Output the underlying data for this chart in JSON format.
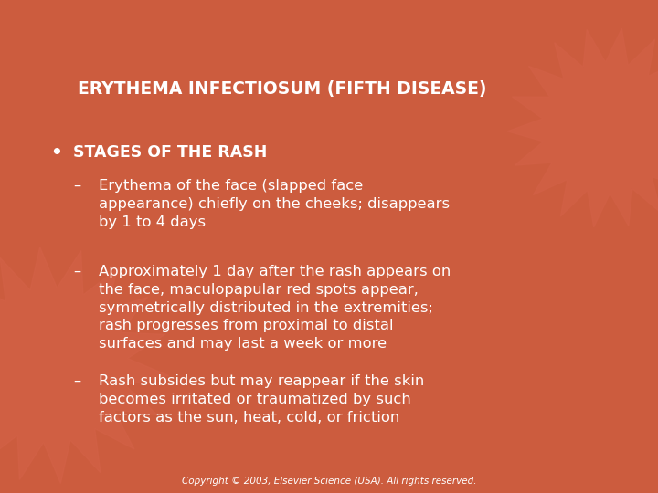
{
  "background_color": "#CC5C3E",
  "title": "ERYTHEMA INFECTIOSUM (FIFTH DISEASE)",
  "title_color": "#FFFFFF",
  "title_fontsize": 13.5,
  "title_bold": true,
  "text_color": "#FFFFFF",
  "body_fontsize": 11.8,
  "bullet_label": "STAGES OF THE RASH",
  "bullet_label_fontsize": 12.5,
  "bullet_label_bold": true,
  "items": [
    "Erythema of the face (slapped face\nappearance) chiefly on the cheeks; disappears\nby 1 to 4 days",
    "Approximately 1 day after the rash appears on\nthe face, maculopapular red spots appear,\nsymmetrically distributed in the extremities;\nrash progresses from proximal to distal\nsurfaces and may last a week or more",
    "Rash subsides but may reappear if the skin\nbecomes irritated or traumatized by such\nfactors as the sun, heat, cold, or friction"
  ],
  "copyright": "Copyright © 2003, Elsevier Science (USA). All rights reserved.",
  "copyright_fontsize": 7.5,
  "fig_width": 7.2,
  "fig_height": 5.4,
  "dpi": 100
}
